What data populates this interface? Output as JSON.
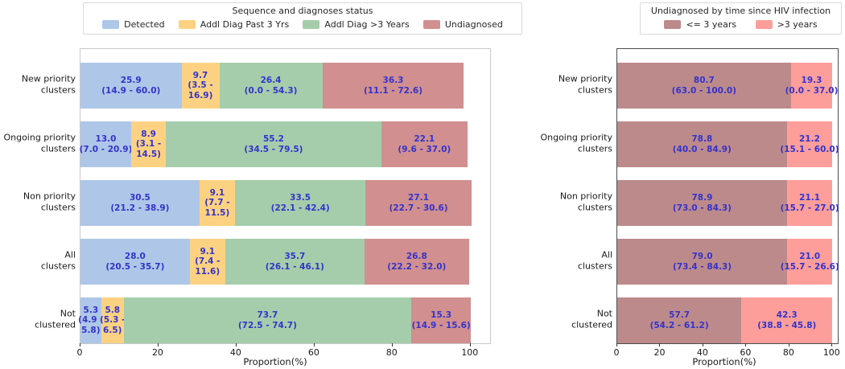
{
  "chart_data": [
    {
      "type": "bar",
      "orientation": "horizontal",
      "stacked": true,
      "grid": false,
      "legend_position": "top",
      "legend_title": "Sequence and diagnoses status",
      "xlabel": "Proportion(%)",
      "xticks": [
        0,
        20,
        40,
        60,
        80,
        100
      ],
      "xlim": [
        0,
        105
      ],
      "value_label_color": "#3333cc",
      "categories": [
        [
          "New priority",
          "clusters"
        ],
        [
          "Ongoing priority",
          "clusters"
        ],
        [
          "Non priority",
          "clusters"
        ],
        [
          "All",
          "clusters"
        ],
        [
          "Not",
          "clustered"
        ]
      ],
      "series": [
        {
          "name": "Detected",
          "color": "#aec7e8",
          "values": [
            25.9,
            13.0,
            30.5,
            28.0,
            5.3
          ],
          "labels": [
            [
              "25.9",
              "(14.9 - 60.0)"
            ],
            [
              "13.0",
              "(7.0 - 20.9)"
            ],
            [
              "30.5",
              "(21.2 - 38.9)"
            ],
            [
              "28.0",
              "(20.5 - 35.7)"
            ],
            [
              "5.3",
              "(4.9 -",
              "5.8)"
            ]
          ]
        },
        {
          "name": "Addl Diag Past 3 Yrs",
          "color": "#fcd282",
          "values": [
            9.7,
            8.9,
            9.1,
            9.1,
            5.8
          ],
          "labels": [
            [
              "9.7",
              "(3.5 -",
              "16.9)"
            ],
            [
              "8.9",
              "(3.1 -",
              "14.5)"
            ],
            [
              "9.1",
              "(7.7 -",
              "11.5)"
            ],
            [
              "9.1",
              "(7.4 -",
              "11.6)"
            ],
            [
              "5.8",
              "(5.3 -",
              "6.5)"
            ]
          ]
        },
        {
          "name": "Addl Diag >3 Years",
          "color": "#a5cdab",
          "values": [
            26.4,
            55.2,
            33.5,
            35.7,
            73.7
          ],
          "labels": [
            [
              "26.4",
              "(0.0 - 54.3)"
            ],
            [
              "55.2",
              "(34.5 - 79.5)"
            ],
            [
              "33.5",
              "(22.1 - 42.4)"
            ],
            [
              "35.7",
              "(26.1 - 46.1)"
            ],
            [
              "73.7",
              "(72.5 - 74.7)"
            ]
          ]
        },
        {
          "name": "Undiagnosed",
          "color": "#d18f8f",
          "values": [
            36.3,
            22.1,
            27.1,
            26.8,
            15.3
          ],
          "labels": [
            [
              "36.3",
              "(11.1 - 72.6)"
            ],
            [
              "22.1",
              "(9.6 - 37.0)"
            ],
            [
              "27.1",
              "(22.7 - 30.6)"
            ],
            [
              "26.8",
              "(22.2 - 32.0)"
            ],
            [
              "15.3",
              "(14.9 - 15.6)"
            ]
          ]
        }
      ]
    },
    {
      "type": "bar",
      "orientation": "horizontal",
      "stacked": true,
      "grid": false,
      "legend_position": "top",
      "legend_title": "Undiagnosed by time since HIV infection",
      "xlabel": "Proportion(%)",
      "xticks": [
        0,
        20,
        40,
        60,
        80,
        100
      ],
      "xlim": [
        0,
        102.5
      ],
      "value_label_color": "#3333cc",
      "categories": [
        [
          "New priority",
          "clusters"
        ],
        [
          "Ongoing priority",
          "clusters"
        ],
        [
          "Non priority",
          "clusters"
        ],
        [
          "All",
          "clusters"
        ],
        [
          "Not",
          "clustered"
        ]
      ],
      "series": [
        {
          "name": "<= 3 years",
          "color": "#bd8a8c",
          "values": [
            80.7,
            78.8,
            78.9,
            79.0,
            57.7
          ],
          "labels": [
            [
              "80.7",
              "(63.0 - 100.0)"
            ],
            [
              "78.8",
              "(40.0 - 84.9)"
            ],
            [
              "78.9",
              "(73.0 - 84.3)"
            ],
            [
              "79.0",
              "(73.4 - 84.3)"
            ],
            [
              "57.7",
              "(54.2 - 61.2)"
            ]
          ]
        },
        {
          "name": ">3 years",
          "color": "#fe9e9b",
          "values": [
            19.3,
            21.2,
            21.1,
            21.0,
            42.3
          ],
          "labels": [
            [
              "19.3",
              "(0.0 - 37.0)"
            ],
            [
              "21.2",
              "(15.1 - 60.0)"
            ],
            [
              "21.1",
              "(15.7 - 27.0)"
            ],
            [
              "21.0",
              "(15.7 - 26.6)"
            ],
            [
              "42.3",
              "(38.8 - 45.8)"
            ]
          ]
        }
      ]
    }
  ]
}
